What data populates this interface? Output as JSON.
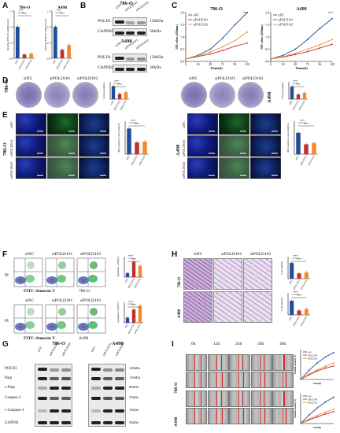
{
  "panels": {
    "A": "A",
    "B": "B",
    "C": "C",
    "D": "D",
    "E": "E",
    "F": "F",
    "G": "G",
    "H": "H",
    "I": "I"
  },
  "cells": {
    "c786": "786-O",
    "a498": "A498"
  },
  "groups": {
    "sinc": "siNC",
    "si1": "siPOLD1#1",
    "si2": "siPOLD1#2"
  },
  "panelA": {
    "ylabel": "Relative POLD1 mRNA level",
    "sig": "***",
    "charts": [
      {
        "title": "786-O",
        "ylim": [
          0,
          1.5
        ],
        "ticks": [
          "0.0",
          "0.5",
          "1.0",
          "1.5"
        ]
      },
      {
        "title": "A498",
        "ylim": [
          0,
          1.5
        ],
        "ticks": [
          "0.0",
          "0.5",
          "1.0",
          "1.5"
        ]
      }
    ]
  },
  "panelB": {
    "c786": {
      "bands": [
        {
          "label": "POLD1",
          "kda": "130kDa"
        },
        {
          "label": "GAPDH",
          "kda": "36kDa"
        }
      ]
    },
    "a498": {
      "bands": [
        {
          "label": "POLD1",
          "kda": "130kDa"
        },
        {
          "label": "GAPDH",
          "kda": "36kDa"
        }
      ]
    }
  },
  "panelC": {
    "xlabel": "Time(h)",
    "ylabel": "OD value (450nm)",
    "xticks": [
      "0",
      "24",
      "48",
      "72",
      "96",
      "120"
    ],
    "sig": "***",
    "charts": [
      {
        "title": "786-O",
        "yticks": [
          "0.0",
          "0.5",
          "1.0",
          "1.5",
          "2.0"
        ]
      },
      {
        "title": "A498",
        "yticks": [
          "0.0",
          "0.5",
          "1.0",
          "1.5",
          "2.0"
        ]
      }
    ]
  },
  "panelD": {
    "ylabel": "Colony number"
  },
  "panelE": {
    "ylabel": "EdU positive cells ratio(%)",
    "stains": [
      "DAPI",
      "EdU",
      "Merge"
    ]
  },
  "panelF": {
    "xlabel": "FITC-Annexin V",
    "ylabel": "PI",
    "bar_ylabel": "Apoptotic cells(%)"
  },
  "panelG": {
    "proteins": [
      "POLD1",
      "Parp",
      "c-Parp",
      "Caspase-3",
      "c-Caspase-3",
      "GAPDH"
    ],
    "kdas": [
      "130kDa",
      "116kDa",
      "89kDa",
      "35kDa",
      "19kDa",
      "36kDa"
    ]
  },
  "panelH": {
    "ylabel": "Cell number"
  },
  "panelI": {
    "times": [
      "0h",
      "12h",
      "24h",
      "36h",
      "48h"
    ],
    "xlabel": "Time(h)",
    "ylabel": "Wound closure(%)"
  },
  "colors": {
    "sinc": "#1f4e9c",
    "si1": "#c0302c",
    "si2": "#f08a2c"
  },
  "chart_data": [
    {
      "type": "bar",
      "title": "786-O",
      "categories": [
        "siNC",
        "siPOLD1#1",
        "siPOLD1#2"
      ],
      "values": [
        1.0,
        0.12,
        0.14
      ],
      "ylabel": "Relative POLD1 mRNA level",
      "ylim": [
        0,
        1.5
      ]
    },
    {
      "type": "bar",
      "title": "A498",
      "categories": [
        "siNC",
        "siPOLD1#1",
        "siPOLD1#2"
      ],
      "values": [
        1.0,
        0.27,
        0.42
      ],
      "ylabel": "Relative POLD1 mRNA level",
      "ylim": [
        0,
        1.5
      ]
    },
    {
      "type": "line",
      "title": "786-O",
      "x": [
        0,
        24,
        48,
        72,
        96,
        120
      ],
      "xlabel": "Time(h)",
      "ylabel": "OD value (450nm)",
      "ylim": [
        0,
        2.0
      ],
      "series": [
        {
          "name": "siNC",
          "values": [
            0.1,
            0.25,
            0.5,
            0.95,
            1.5,
            2.0
          ]
        },
        {
          "name": "siPOLD1#1",
          "values": [
            0.1,
            0.2,
            0.3,
            0.45,
            0.62,
            0.75
          ]
        },
        {
          "name": "siPOLD1#2",
          "values": [
            0.1,
            0.22,
            0.38,
            0.6,
            0.85,
            1.2
          ]
        }
      ]
    },
    {
      "type": "line",
      "title": "A498",
      "x": [
        0,
        24,
        48,
        72,
        96,
        120
      ],
      "xlabel": "Time(h)",
      "ylabel": "OD value (450nm)",
      "ylim": [
        0,
        2.0
      ],
      "series": [
        {
          "name": "siNC",
          "values": [
            0.1,
            0.25,
            0.5,
            0.9,
            1.35,
            1.75
          ]
        },
        {
          "name": "siPOLD1#1",
          "values": [
            0.1,
            0.18,
            0.28,
            0.4,
            0.55,
            0.7
          ]
        },
        {
          "name": "siPOLD1#2",
          "values": [
            0.1,
            0.2,
            0.33,
            0.5,
            0.68,
            0.9
          ]
        }
      ]
    },
    {
      "type": "bar",
      "title": "786-O",
      "categories": [
        "siNC",
        "siPOLD1#1",
        "siPOLD1#2"
      ],
      "values": [
        600,
        250,
        320
      ],
      "ylabel": "Colony number",
      "ylim": [
        0,
        800
      ]
    },
    {
      "type": "bar",
      "title": "A498",
      "categories": [
        "siNC",
        "siPOLD1#1",
        "siPOLD1#2"
      ],
      "values": [
        580,
        220,
        290
      ],
      "ylabel": "Colony number",
      "ylim": [
        0,
        800
      ]
    },
    {
      "type": "bar",
      "title": "786-O",
      "categories": [
        "siNC",
        "siPOLD1#1",
        "siPOLD1#2"
      ],
      "values": [
        78,
        36,
        38
      ],
      "ylabel": "EdU positive cells ratio(%)",
      "ylim": [
        0,
        100
      ]
    },
    {
      "type": "bar",
      "title": "A498",
      "categories": [
        "siNC",
        "siPOLD1#1",
        "siPOLD1#2"
      ],
      "values": [
        65,
        30,
        34
      ],
      "ylabel": "EdU positive cells ratio(%)",
      "ylim": [
        0,
        100
      ]
    },
    {
      "type": "bar",
      "title": "786-O",
      "categories": [
        "siNC",
        "siPOLD1#1",
        "siPOLD1#2"
      ],
      "values": [
        8,
        30,
        22
      ],
      "ylabel": "Apoptotic cells(%)",
      "ylim": [
        0,
        40
      ]
    },
    {
      "type": "bar",
      "title": "A498",
      "categories": [
        "siNC",
        "siPOLD1#1",
        "siPOLD1#2"
      ],
      "values": [
        10,
        26,
        33
      ],
      "ylabel": "Apoptotic cells(%)",
      "ylim": [
        0,
        40
      ]
    },
    {
      "type": "bar",
      "title": "786-O",
      "categories": [
        "siNC",
        "siPOLD1#1",
        "siPOLD1#2"
      ],
      "values": [
        180,
        60,
        70
      ],
      "ylabel": "Cell number",
      "ylim": [
        0,
        250
      ]
    },
    {
      "type": "bar",
      "title": "A498",
      "categories": [
        "siNC",
        "siPOLD1#1",
        "siPOLD1#2"
      ],
      "values": [
        160,
        50,
        65
      ],
      "ylabel": "Cell number",
      "ylim": [
        0,
        250
      ]
    },
    {
      "type": "line",
      "title": "786-O",
      "x": [
        0,
        12,
        24,
        36,
        48
      ],
      "xlabel": "Time(h)",
      "ylabel": "Wound closure(%)",
      "ylim": [
        0,
        100
      ],
      "series": [
        {
          "name": "siNC",
          "values": [
            0,
            30,
            55,
            75,
            90
          ]
        },
        {
          "name": "siPOLD1#1",
          "values": [
            0,
            15,
            28,
            38,
            45
          ]
        },
        {
          "name": "siPOLD1#2",
          "values": [
            0,
            18,
            32,
            44,
            55
          ]
        }
      ]
    },
    {
      "type": "line",
      "title": "A498",
      "x": [
        0,
        12,
        24,
        36,
        48
      ],
      "xlabel": "Time(h)",
      "ylabel": "Wound closure(%)",
      "ylim": [
        0,
        100
      ],
      "series": [
        {
          "name": "siNC",
          "values": [
            0,
            28,
            52,
            72,
            88
          ]
        },
        {
          "name": "siPOLD1#1",
          "values": [
            0,
            12,
            22,
            32,
            40
          ]
        },
        {
          "name": "siPOLD1#2",
          "values": [
            0,
            15,
            27,
            38,
            48
          ]
        }
      ]
    }
  ]
}
